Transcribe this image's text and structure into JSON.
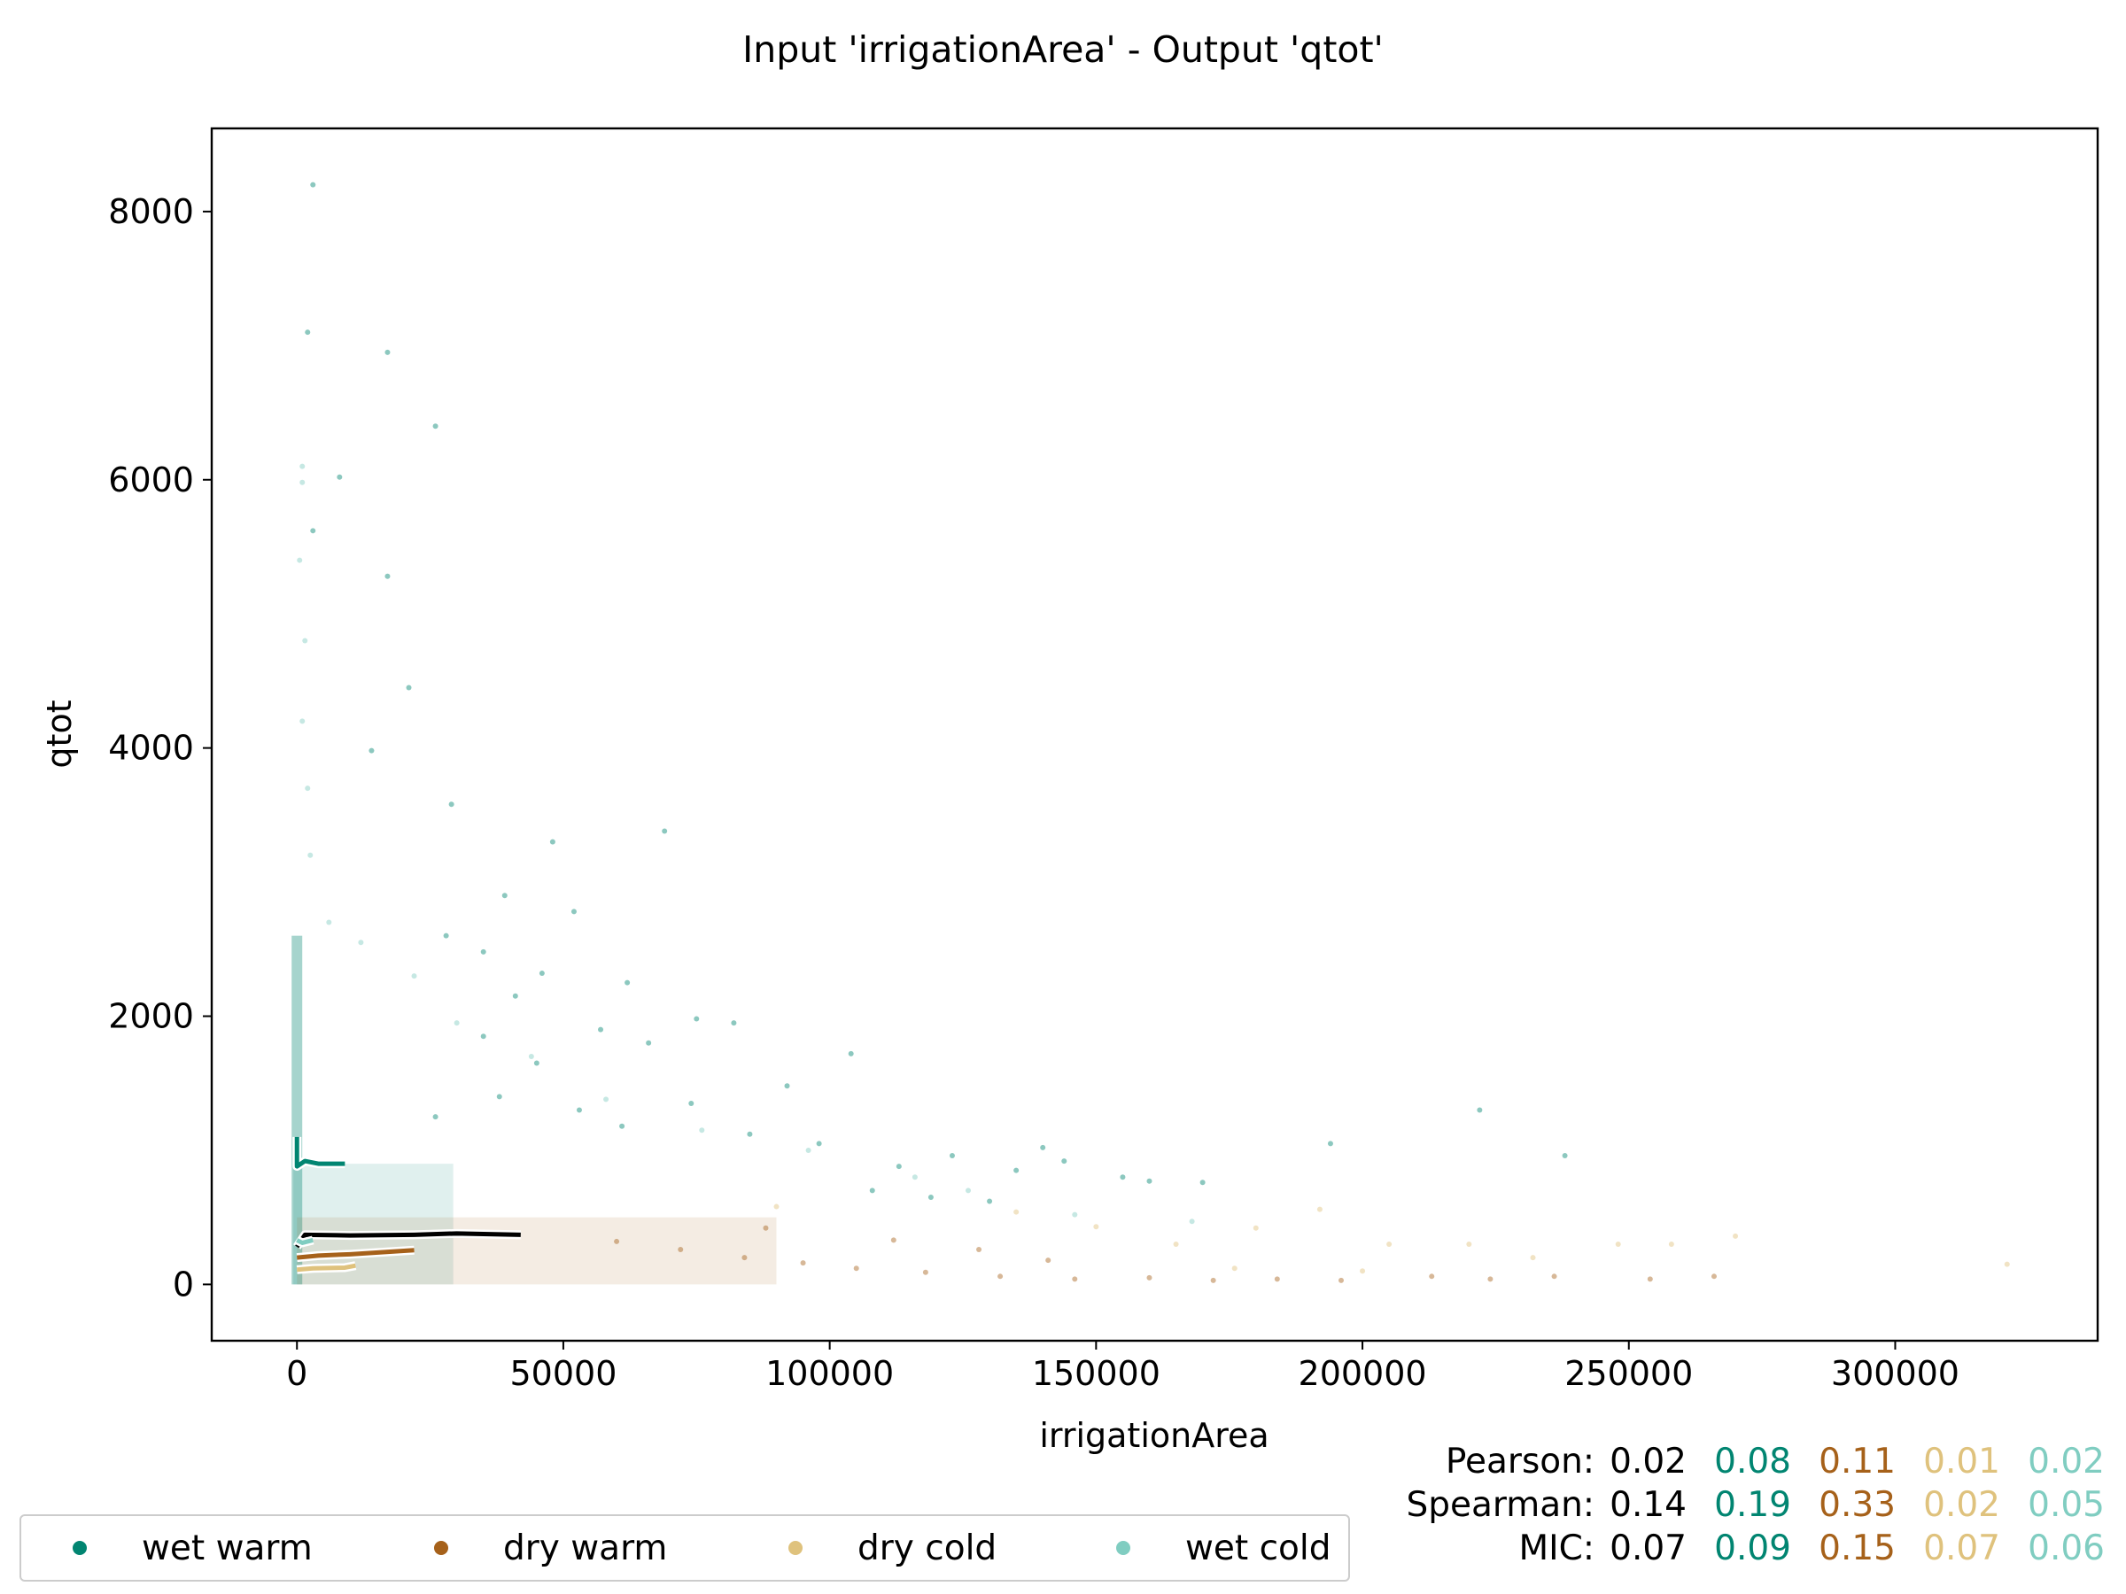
{
  "chart_data": {
    "type": "scatter",
    "title": "Input 'irrigationArea' - Output 'qtot'",
    "xlabel": "irrigationArea",
    "ylabel": "qtot",
    "xlim": [
      -16000,
      338000
    ],
    "ylim": [
      -420,
      8620
    ],
    "xticks": [
      0,
      50000,
      100000,
      150000,
      200000,
      250000,
      300000
    ],
    "yticks": [
      0,
      2000,
      4000,
      6000,
      8000
    ],
    "grid": false,
    "legend_position": "bottom-left",
    "series": [
      {
        "name": "wet warm",
        "color": "#018571",
        "points": [
          [
            3000,
            8200
          ],
          [
            2000,
            7100
          ],
          [
            17000,
            6950
          ],
          [
            26000,
            6400
          ],
          [
            8000,
            6020
          ],
          [
            3000,
            5620
          ],
          [
            17000,
            5280
          ],
          [
            21000,
            4450
          ],
          [
            14000,
            3980
          ],
          [
            29000,
            3580
          ],
          [
            48000,
            3300
          ],
          [
            69000,
            3380
          ],
          [
            39000,
            2900
          ],
          [
            52000,
            2780
          ],
          [
            28000,
            2600
          ],
          [
            35000,
            2480
          ],
          [
            46000,
            2320
          ],
          [
            62000,
            2250
          ],
          [
            41000,
            2150
          ],
          [
            75000,
            1980
          ],
          [
            57000,
            1900
          ],
          [
            82000,
            1950
          ],
          [
            35000,
            1850
          ],
          [
            66000,
            1800
          ],
          [
            104000,
            1720
          ],
          [
            45000,
            1650
          ],
          [
            92000,
            1480
          ],
          [
            38000,
            1400
          ],
          [
            74000,
            1350
          ],
          [
            53000,
            1300
          ],
          [
            26000,
            1250
          ],
          [
            61000,
            1180
          ],
          [
            85000,
            1120
          ],
          [
            98000,
            1050
          ],
          [
            140000,
            1020
          ],
          [
            123000,
            960
          ],
          [
            155000,
            800
          ],
          [
            144000,
            920
          ],
          [
            160000,
            770
          ],
          [
            170000,
            760
          ],
          [
            194000,
            1050
          ],
          [
            222000,
            1300
          ],
          [
            238000,
            960
          ],
          [
            113000,
            880
          ],
          [
            135000,
            850
          ],
          [
            108000,
            700
          ],
          [
            119000,
            650
          ],
          [
            130000,
            620
          ]
        ]
      },
      {
        "name": "dry warm",
        "color": "#a6611a",
        "points": [
          [
            60000,
            320
          ],
          [
            72000,
            260
          ],
          [
            84000,
            200
          ],
          [
            95000,
            160
          ],
          [
            105000,
            120
          ],
          [
            118000,
            90
          ],
          [
            132000,
            60
          ],
          [
            146000,
            40
          ],
          [
            160000,
            50
          ],
          [
            172000,
            30
          ],
          [
            184000,
            40
          ],
          [
            196000,
            30
          ],
          [
            213000,
            60
          ],
          [
            224000,
            40
          ],
          [
            236000,
            60
          ],
          [
            254000,
            40
          ],
          [
            266000,
            60
          ],
          [
            88000,
            420
          ],
          [
            112000,
            330
          ],
          [
            128000,
            260
          ],
          [
            141000,
            180
          ]
        ]
      },
      {
        "name": "dry cold",
        "color": "#dfc27d",
        "points": [
          [
            90000,
            580
          ],
          [
            135000,
            540
          ],
          [
            150000,
            430
          ],
          [
            165000,
            300
          ],
          [
            180000,
            420
          ],
          [
            192000,
            560
          ],
          [
            205000,
            300
          ],
          [
            220000,
            300
          ],
          [
            232000,
            200
          ],
          [
            248000,
            300
          ],
          [
            258000,
            300
          ],
          [
            270000,
            360
          ],
          [
            321000,
            150
          ],
          [
            200000,
            100
          ],
          [
            176000,
            120
          ]
        ]
      },
      {
        "name": "wet cold",
        "color": "#80cdc1",
        "points": [
          [
            1000,
            6100
          ],
          [
            1000,
            5980
          ],
          [
            500,
            5400
          ],
          [
            1500,
            4800
          ],
          [
            1000,
            4200
          ],
          [
            2000,
            3700
          ],
          [
            2500,
            3200
          ],
          [
            6000,
            2700
          ],
          [
            12000,
            2550
          ],
          [
            22000,
            2300
          ],
          [
            30000,
            1950
          ],
          [
            44000,
            1700
          ],
          [
            58000,
            1380
          ],
          [
            76000,
            1150
          ],
          [
            96000,
            1000
          ],
          [
            116000,
            800
          ],
          [
            126000,
            700
          ],
          [
            146000,
            520
          ],
          [
            168000,
            470
          ]
        ]
      }
    ],
    "trend_lines": [
      {
        "name": "wet warm",
        "color": "#018571",
        "points": [
          [
            0,
            1100
          ],
          [
            0,
            880
          ],
          [
            1500,
            920
          ],
          [
            4000,
            900
          ],
          [
            9000,
            900
          ]
        ]
      },
      {
        "name": "overall",
        "color": "#000000",
        "points": [
          [
            0,
            280
          ],
          [
            1500,
            370
          ],
          [
            10000,
            365
          ],
          [
            22000,
            370
          ],
          [
            30000,
            380
          ],
          [
            42000,
            370
          ]
        ]
      },
      {
        "name": "dry warm",
        "color": "#a6611a",
        "points": [
          [
            0,
            200
          ],
          [
            4000,
            215
          ],
          [
            10000,
            225
          ],
          [
            22000,
            255
          ]
        ]
      },
      {
        "name": "dry cold",
        "color": "#dfc27d",
        "points": [
          [
            0,
            110
          ],
          [
            3000,
            120
          ],
          [
            9000,
            125
          ],
          [
            11000,
            140
          ]
        ]
      },
      {
        "name": "wet cold",
        "color": "#80cdc1",
        "points": [
          [
            0,
            330
          ],
          [
            1000,
            310
          ],
          [
            3000,
            330
          ]
        ]
      }
    ]
  },
  "legend": {
    "items": [
      {
        "label": "wet warm",
        "color": "#018571"
      },
      {
        "label": "dry warm",
        "color": "#a6611a"
      },
      {
        "label": "dry cold",
        "color": "#dfc27d"
      },
      {
        "label": "wet cold",
        "color": "#80cdc1"
      }
    ]
  },
  "stats": {
    "rows": [
      {
        "label": "Pearson:",
        "values": [
          "0.02",
          "0.08",
          "0.11",
          "0.01",
          "0.02"
        ]
      },
      {
        "label": "Spearman:",
        "values": [
          "0.14",
          "0.19",
          "0.33",
          "0.02",
          "0.05"
        ]
      },
      {
        "label": "MIC:",
        "values": [
          "0.07",
          "0.09",
          "0.15",
          "0.07",
          "0.06"
        ]
      }
    ],
    "value_colors": [
      "#000000",
      "#018571",
      "#a6611a",
      "#dfc27d",
      "#80cdc1"
    ]
  }
}
